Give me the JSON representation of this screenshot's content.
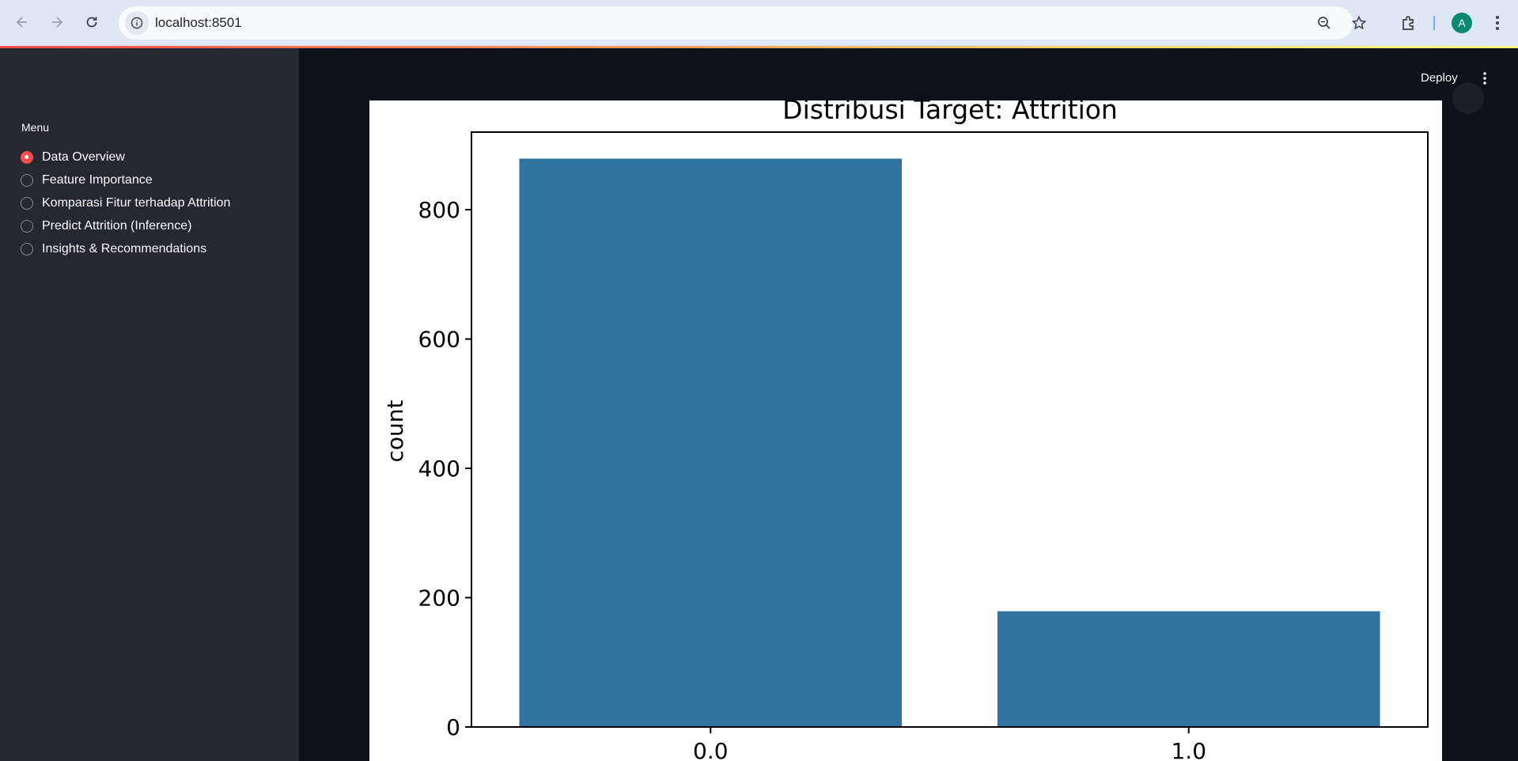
{
  "browser": {
    "url": "localhost:8501",
    "avatar_letter": "A"
  },
  "sidebar": {
    "menu_label": "Menu",
    "items": [
      {
        "label": "Data Overview",
        "selected": true
      },
      {
        "label": "Feature Importance",
        "selected": false
      },
      {
        "label": "Komparasi Fitur terhadap Attrition",
        "selected": false
      },
      {
        "label": "Predict Attrition (Inference)",
        "selected": false
      },
      {
        "label": "Insights & Recommendations",
        "selected": false
      }
    ]
  },
  "header": {
    "deploy_label": "Deploy"
  },
  "colors": {
    "accent": "#ff4b4b",
    "sidebar_bg": "#262730",
    "main_bg": "#0e1117",
    "bar": "#3274a1"
  },
  "chart_data": {
    "type": "bar",
    "title": "Distribusi Target: Attrition",
    "xlabel": "",
    "ylabel": "count",
    "categories": [
      "0.0",
      "1.0"
    ],
    "values": [
      879,
      179
    ],
    "ylim": [
      0,
      920
    ],
    "yticks": [
      0,
      200,
      400,
      600,
      800
    ],
    "grid": false
  }
}
